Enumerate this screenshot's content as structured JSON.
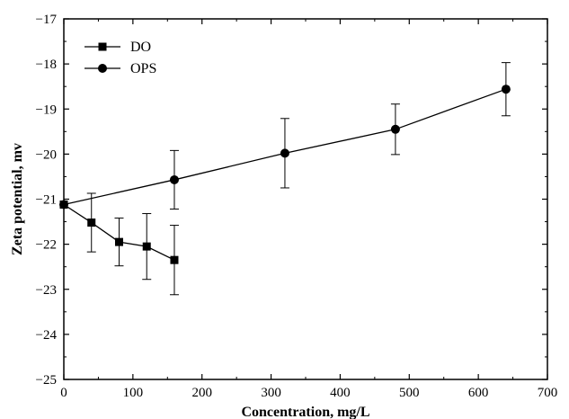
{
  "chart_data": {
    "type": "line",
    "xlabel": "Concentration, mg/L",
    "ylabel": "Zeta potential, mv",
    "xlim": [
      0,
      700
    ],
    "ylim": [
      -25,
      -17
    ],
    "xticks": [
      0,
      100,
      200,
      300,
      400,
      500,
      600,
      700
    ],
    "yticks": [
      -25,
      -24,
      -23,
      -22,
      -21,
      -20,
      -19,
      -18,
      -17
    ],
    "grid": false,
    "legend_position": "top-left",
    "series": [
      {
        "name": "DO",
        "marker": "square",
        "x": [
          0,
          40,
          80,
          120,
          160
        ],
        "y": [
          -21.12,
          -21.52,
          -21.95,
          -22.05,
          -22.35
        ],
        "error": [
          0.0,
          0.65,
          0.53,
          0.73,
          0.77
        ]
      },
      {
        "name": "OPS",
        "marker": "circle",
        "x": [
          0,
          160,
          320,
          480,
          640
        ],
        "y": [
          -21.12,
          -20.57,
          -19.98,
          -19.45,
          -18.56
        ],
        "error": [
          0.0,
          0.65,
          0.77,
          0.56,
          0.59
        ]
      }
    ]
  }
}
